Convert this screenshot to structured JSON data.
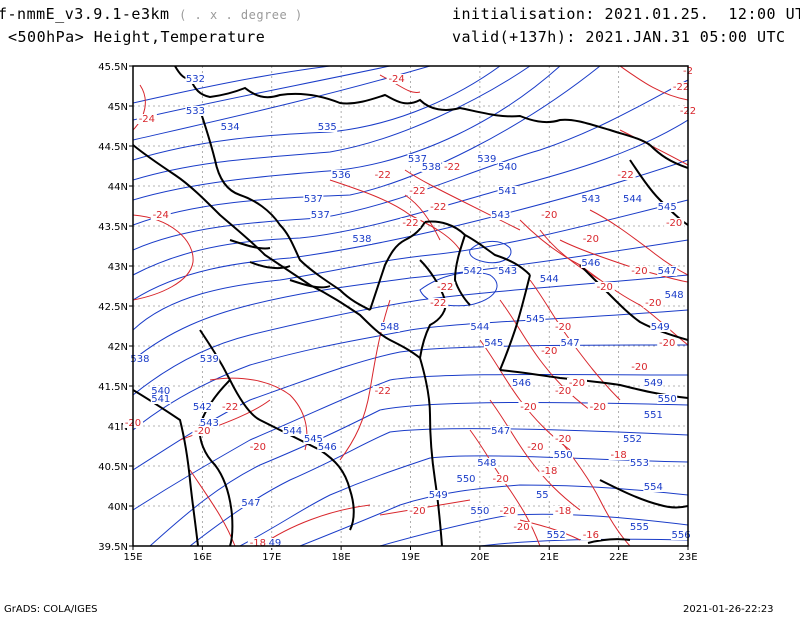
{
  "header": {
    "model": "f-nmmE_v3.9.1-e3km",
    "units": "( . x . degree )",
    "field": "<500hPa> Height,Temperature",
    "init": "initialisation: 2021.01.25.  12:00 UTC",
    "valid": "valid(+137h): 2021.JAN.31 05:00 UTC"
  },
  "footer": {
    "credit": "GrADS: COLA/IGES",
    "timestamp": "2021-01-26-22:23"
  },
  "map": {
    "lon_range": [
      15,
      23
    ],
    "lat_range": [
      39.5,
      45.5
    ],
    "lon_ticks": [
      "15E",
      "16E",
      "17E",
      "18E",
      "19E",
      "20E",
      "21E",
      "22E",
      "23E"
    ],
    "lat_ticks": [
      "39.5N",
      "40N",
      "40.5N",
      "41N",
      "41.5N",
      "42N",
      "42.5N",
      "43N",
      "43.5N",
      "44N",
      "44.5N",
      "45N",
      "45.5N"
    ],
    "grid": true,
    "colors": {
      "height": "#1a3cc8",
      "temperature": "#d8262c",
      "border": "#000000",
      "grid": "#9a9a9a"
    },
    "height_labels": [
      {
        "t": "532",
        "lon": 15.9,
        "lat": 45.3
      },
      {
        "t": "533",
        "lon": 15.9,
        "lat": 44.9
      },
      {
        "t": "534",
        "lon": 16.4,
        "lat": 44.7
      },
      {
        "t": "535",
        "lon": 17.8,
        "lat": 44.7
      },
      {
        "t": "536",
        "lon": 18.0,
        "lat": 44.1
      },
      {
        "t": "537",
        "lon": 17.6,
        "lat": 43.8
      },
      {
        "t": "537",
        "lon": 17.7,
        "lat": 43.6
      },
      {
        "t": "537",
        "lon": 19.1,
        "lat": 44.3
      },
      {
        "t": "538",
        "lon": 19.3,
        "lat": 44.2
      },
      {
        "t": "538",
        "lon": 18.3,
        "lat": 43.3
      },
      {
        "t": "539",
        "lon": 20.1,
        "lat": 44.3
      },
      {
        "t": "540",
        "lon": 20.4,
        "lat": 44.2
      },
      {
        "t": "541",
        "lon": 20.4,
        "lat": 43.9
      },
      {
        "t": "542",
        "lon": 19.9,
        "lat": 42.9
      },
      {
        "t": "543",
        "lon": 20.3,
        "lat": 43.6
      },
      {
        "t": "543",
        "lon": 20.4,
        "lat": 42.9
      },
      {
        "t": "543",
        "lon": 21.6,
        "lat": 43.8
      },
      {
        "t": "544",
        "lon": 21.0,
        "lat": 42.8
      },
      {
        "t": "544",
        "lon": 22.2,
        "lat": 43.8
      },
      {
        "t": "545",
        "lon": 20.8,
        "lat": 42.3
      },
      {
        "t": "545",
        "lon": 22.7,
        "lat": 43.7
      },
      {
        "t": "546",
        "lon": 21.6,
        "lat": 43.0
      },
      {
        "t": "547",
        "lon": 21.3,
        "lat": 42.0
      },
      {
        "t": "547",
        "lon": 22.7,
        "lat": 42.9
      },
      {
        "t": "548",
        "lon": 22.8,
        "lat": 42.6
      },
      {
        "t": "549",
        "lon": 22.6,
        "lat": 42.2
      },
      {
        "t": "549",
        "lon": 22.5,
        "lat": 41.5
      },
      {
        "t": "550",
        "lon": 22.7,
        "lat": 41.3
      },
      {
        "t": "551",
        "lon": 22.5,
        "lat": 41.1
      },
      {
        "t": "552",
        "lon": 22.2,
        "lat": 40.8
      },
      {
        "t": "553",
        "lon": 22.3,
        "lat": 40.5
      },
      {
        "t": "554",
        "lon": 22.5,
        "lat": 40.2
      },
      {
        "t": "555",
        "lon": 22.3,
        "lat": 39.7
      },
      {
        "t": "556",
        "lon": 22.9,
        "lat": 39.6
      },
      {
        "t": "538",
        "lon": 15.1,
        "lat": 41.8
      },
      {
        "t": "539",
        "lon": 16.1,
        "lat": 41.8
      },
      {
        "t": "540",
        "lon": 15.4,
        "lat": 41.4
      },
      {
        "t": "541",
        "lon": 15.4,
        "lat": 41.3
      },
      {
        "t": "542",
        "lon": 16.0,
        "lat": 41.2
      },
      {
        "t": "543",
        "lon": 16.1,
        "lat": 41.0
      },
      {
        "t": "544",
        "lon": 17.3,
        "lat": 40.9
      },
      {
        "t": "545",
        "lon": 17.6,
        "lat": 40.8
      },
      {
        "t": "546",
        "lon": 17.8,
        "lat": 40.7
      },
      {
        "t": "547",
        "lon": 16.7,
        "lat": 40.0
      },
      {
        "t": "548",
        "lon": 18.7,
        "lat": 42.2
      },
      {
        "t": "544",
        "lon": 20.0,
        "lat": 42.2
      },
      {
        "t": "545",
        "lon": 20.2,
        "lat": 42.0
      },
      {
        "t": "546",
        "lon": 20.6,
        "lat": 41.5
      },
      {
        "t": "547",
        "lon": 20.3,
        "lat": 40.9
      },
      {
        "t": "548",
        "lon": 20.1,
        "lat": 40.5
      },
      {
        "t": "549",
        "lon": 19.4,
        "lat": 40.1
      },
      {
        "t": "550",
        "lon": 19.8,
        "lat": 40.3
      },
      {
        "t": "550",
        "lon": 20.0,
        "lat": 39.9
      },
      {
        "t": "550",
        "lon": 21.2,
        "lat": 40.6
      },
      {
        "t": "552",
        "lon": 21.1,
        "lat": 39.6
      },
      {
        "t": "55",
        "lon": 20.9,
        "lat": 40.1
      },
      {
        "t": "549",
        "lon": 17.0,
        "lat": 39.5
      }
    ],
    "temperature_labels": [
      {
        "t": "-24",
        "lon": 18.8,
        "lat": 45.3
      },
      {
        "t": "-24",
        "lon": 15.2,
        "lat": 44.8
      },
      {
        "t": "-24",
        "lon": 15.4,
        "lat": 43.6
      },
      {
        "t": "-22",
        "lon": 22.9,
        "lat": 45.2
      },
      {
        "t": "-22",
        "lon": 23.0,
        "lat": 44.9
      },
      {
        "t": "-22",
        "lon": 18.6,
        "lat": 44.1
      },
      {
        "t": "-22",
        "lon": 19.1,
        "lat": 43.9
      },
      {
        "t": "-22",
        "lon": 19.6,
        "lat": 44.2
      },
      {
        "t": "-22",
        "lon": 22.1,
        "lat": 44.1
      },
      {
        "t": "-22",
        "lon": 19.4,
        "lat": 43.7
      },
      {
        "t": "-22",
        "lon": 19.0,
        "lat": 43.5
      },
      {
        "t": "-22",
        "lon": 19.5,
        "lat": 42.7
      },
      {
        "t": "-22",
        "lon": 19.4,
        "lat": 42.5
      },
      {
        "t": "-22",
        "lon": 18.6,
        "lat": 41.4
      },
      {
        "t": "-22",
        "lon": 16.4,
        "lat": 41.2
      },
      {
        "t": "-20",
        "lon": 21.0,
        "lat": 43.6
      },
      {
        "t": "-20",
        "lon": 21.6,
        "lat": 43.3
      },
      {
        "t": "-20",
        "lon": 22.8,
        "lat": 43.5
      },
      {
        "t": "-20",
        "lon": 22.3,
        "lat": 42.9
      },
      {
        "t": "-20",
        "lon": 21.8,
        "lat": 42.7
      },
      {
        "t": "-20",
        "lon": 22.5,
        "lat": 42.5
      },
      {
        "t": "-20",
        "lon": 21.2,
        "lat": 42.2
      },
      {
        "t": "-20",
        "lon": 21.0,
        "lat": 41.9
      },
      {
        "t": "-20",
        "lon": 22.7,
        "lat": 42.0
      },
      {
        "t": "-20",
        "lon": 22.3,
        "lat": 41.7
      },
      {
        "t": "-20",
        "lon": 21.4,
        "lat": 41.5
      },
      {
        "t": "-20",
        "lon": 21.2,
        "lat": 41.4
      },
      {
        "t": "-20",
        "lon": 20.7,
        "lat": 41.2
      },
      {
        "t": "-20",
        "lon": 21.7,
        "lat": 41.2
      },
      {
        "t": "-20",
        "lon": 16.0,
        "lat": 40.9
      },
      {
        "t": "-20",
        "lon": 16.8,
        "lat": 40.7
      },
      {
        "t": "-20",
        "lon": 20.8,
        "lat": 40.7
      },
      {
        "t": "-20",
        "lon": 21.2,
        "lat": 40.8
      },
      {
        "t": "-20",
        "lon": 19.1,
        "lat": 39.9
      },
      {
        "t": "-20",
        "lon": 20.4,
        "lat": 39.9
      },
      {
        "t": "-20",
        "lon": 20.6,
        "lat": 39.7
      },
      {
        "t": "-18",
        "lon": 22.0,
        "lat": 40.6
      },
      {
        "t": "-18",
        "lon": 21.0,
        "lat": 40.4
      },
      {
        "t": "-18",
        "lon": 21.2,
        "lat": 39.9
      },
      {
        "t": "-18",
        "lon": 16.8,
        "lat": 39.5
      },
      {
        "t": "-16",
        "lon": 21.6,
        "lat": 39.6
      },
      {
        "t": "-20",
        "lon": 20.3,
        "lat": 40.3
      },
      {
        "t": "-2",
        "lon": 23.0,
        "lat": 45.4
      },
      {
        "t": "-20",
        "lon": 15.0,
        "lat": 41.0
      }
    ]
  }
}
